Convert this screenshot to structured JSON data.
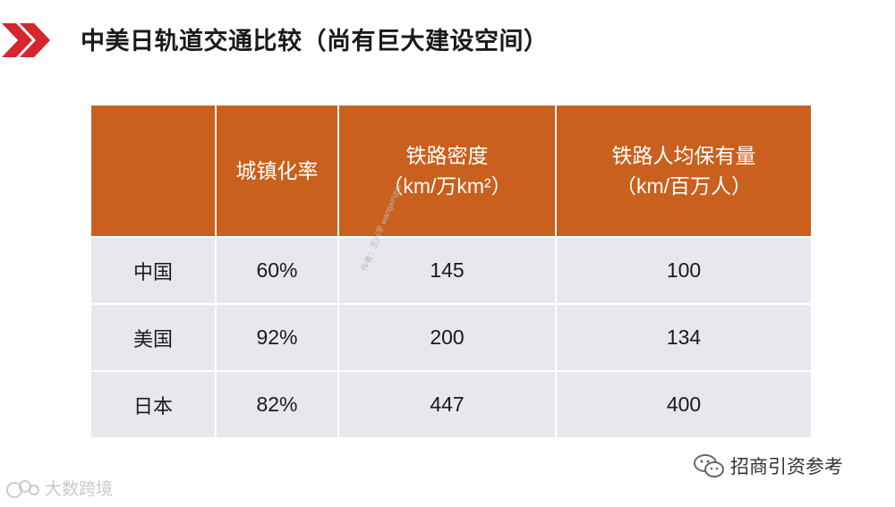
{
  "slide": {
    "title": "中美日轨道交通比较（尚有巨大建设空间）",
    "accent_color": "#d4262c",
    "icon": "double-chevron-icon"
  },
  "table": {
    "header_color": "#c9601d",
    "row_color": "#e6e8ee",
    "headers": [
      {
        "line1": "",
        "line2": ""
      },
      {
        "line1": "城镇化率",
        "line2": ""
      },
      {
        "line1": "铁路密度",
        "line2": "（km/万km²）"
      },
      {
        "line1": "铁路人均保有量",
        "line2": "（km/百万人）"
      }
    ],
    "rows": [
      {
        "country": "中国",
        "urbanization": "60%",
        "density": "145",
        "per_capita": "100"
      },
      {
        "country": "美国",
        "urbanization": "92%",
        "density": "200",
        "per_capita": "134"
      },
      {
        "country": "日本",
        "urbanization": "82%",
        "density": "447",
        "per_capita": "400"
      }
    ]
  },
  "watermarks": {
    "center": "作者：王兴宇 wangxingyu",
    "bottom_left": "大数跨境",
    "bottom_right": "招商引资参考"
  }
}
